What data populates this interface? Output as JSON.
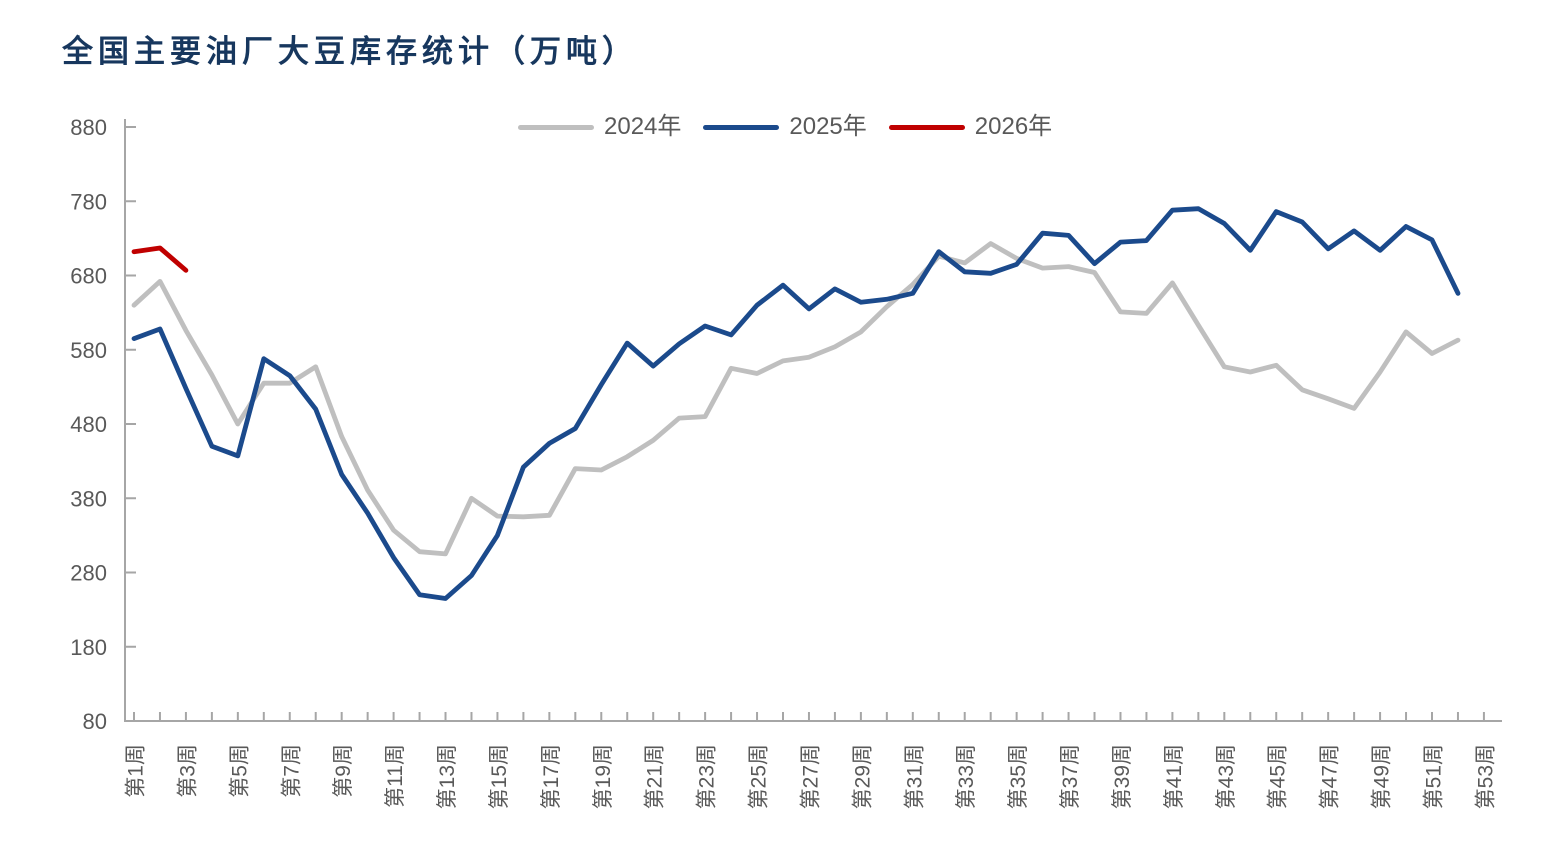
{
  "header": {
    "title": "全国主要油厂大豆库存统计（万吨）"
  },
  "chart_data": {
    "type": "line",
    "title": "全国主要油厂大豆库存统计（万吨）",
    "ylabel": "",
    "xlabel": "",
    "ylim": [
      80,
      880
    ],
    "y_ticks": [
      880,
      780,
      680,
      580,
      480,
      380,
      280,
      180,
      80
    ],
    "x_total_weeks": 53,
    "x_tick_labels": [
      "第1周",
      "第3周",
      "第5周",
      "第7周",
      "第9周",
      "第11周",
      "第13周",
      "第15周",
      "第17周",
      "第19周",
      "第21周",
      "第23周",
      "第25周",
      "第27周",
      "第29周",
      "第31周",
      "第33周",
      "第35周",
      "第37周",
      "第39周",
      "第41周",
      "第43周",
      "第45周",
      "第47周",
      "第49周",
      "第51周",
      "第53周"
    ],
    "grid": false,
    "legend_position": "top",
    "axis_color": "#a6a6a6",
    "label_color": "#595959",
    "title_color": "#17375e",
    "series": [
      {
        "name": "2024年",
        "color": "#bfbfbf",
        "start_week": 1,
        "values": [
          640,
          672,
          606,
          546,
          480,
          535,
          535,
          557,
          463,
          391,
          337,
          308,
          305,
          380,
          356,
          355,
          357,
          420,
          418,
          436,
          458,
          488,
          490,
          555,
          548,
          565,
          570,
          584,
          604,
          638,
          668,
          706,
          697,
          723,
          703,
          690,
          692,
          684,
          631,
          629,
          670,
          613,
          557,
          550,
          559,
          526,
          514,
          501,
          550,
          604,
          575,
          593
        ]
      },
      {
        "name": "2025年",
        "color": "#1b4a8c",
        "start_week": 1,
        "values": [
          595,
          608,
          528,
          450,
          437,
          568,
          545,
          500,
          412,
          360,
          300,
          250,
          245,
          276,
          330,
          422,
          454,
          474,
          533,
          589,
          558,
          588,
          612,
          600,
          640,
          667,
          635,
          662,
          644,
          648,
          656,
          712,
          685,
          683,
          695,
          737,
          734,
          696,
          725,
          727,
          768,
          770,
          750,
          714,
          766,
          752,
          716,
          740,
          714,
          746,
          728,
          656
        ]
      },
      {
        "name": "2026年",
        "color": "#c00000",
        "start_week": 1,
        "values": [
          712,
          717,
          687
        ]
      }
    ]
  }
}
